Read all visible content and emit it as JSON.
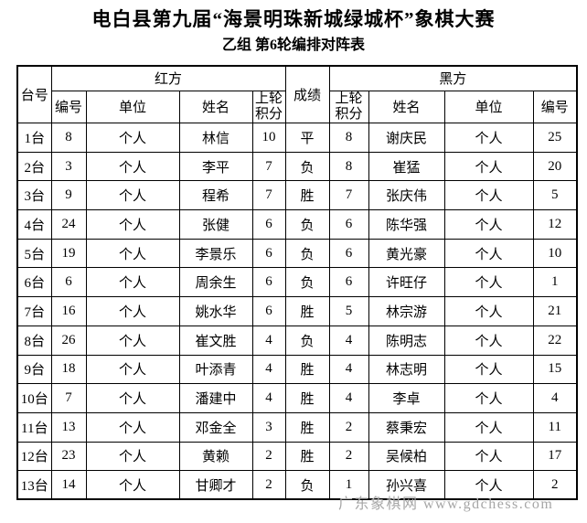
{
  "page": {
    "title": "电白县第九届“海景明珠新城绿城杯”象棋大赛",
    "subtitle": "乙组 第6轮编排对阵表",
    "watermark": "广东象棋网 www.gdchess.com"
  },
  "colors": {
    "text": "#000000",
    "border": "#000000",
    "background": "#ffffff",
    "watermark": "#a6a6a6"
  },
  "table": {
    "headers": {
      "table_no": "台号",
      "red_side": "红方",
      "result": "成绩",
      "black_side": "黑方",
      "player_no": "编号",
      "unit": "单位",
      "name": "姓名",
      "prev_round": "上轮",
      "points": "积分"
    },
    "rows": [
      [
        "1台",
        "8",
        "个人",
        "林信",
        "10",
        "平",
        "8",
        "谢庆民",
        "个人",
        "25"
      ],
      [
        "2台",
        "3",
        "个人",
        "李平",
        "7",
        "负",
        "8",
        "崔猛",
        "个人",
        "20"
      ],
      [
        "3台",
        "9",
        "个人",
        "程希",
        "7",
        "胜",
        "7",
        "张庆伟",
        "个人",
        "5"
      ],
      [
        "4台",
        "24",
        "个人",
        "张健",
        "6",
        "负",
        "6",
        "陈华强",
        "个人",
        "12"
      ],
      [
        "5台",
        "19",
        "个人",
        "李景乐",
        "6",
        "负",
        "6",
        "黄光豪",
        "个人",
        "10"
      ],
      [
        "6台",
        "6",
        "个人",
        "周余生",
        "6",
        "负",
        "6",
        "许旺仔",
        "个人",
        "1"
      ],
      [
        "7台",
        "16",
        "个人",
        "姚水华",
        "6",
        "胜",
        "5",
        "林宗游",
        "个人",
        "21"
      ],
      [
        "8台",
        "26",
        "个人",
        "崔文胜",
        "4",
        "负",
        "4",
        "陈明志",
        "个人",
        "22"
      ],
      [
        "9台",
        "18",
        "个人",
        "叶添青",
        "4",
        "胜",
        "4",
        "林志明",
        "个人",
        "15"
      ],
      [
        "10台",
        "7",
        "个人",
        "潘建中",
        "4",
        "胜",
        "4",
        "李卓",
        "个人",
        "4"
      ],
      [
        "11台",
        "13",
        "个人",
        "邓金全",
        "3",
        "胜",
        "2",
        "蔡秉宏",
        "个人",
        "11"
      ],
      [
        "12台",
        "23",
        "个人",
        "黄赖",
        "2",
        "胜",
        "2",
        "吴候柏",
        "个人",
        "17"
      ],
      [
        "13台",
        "14",
        "个人",
        "甘卿才",
        "2",
        "负",
        "1",
        "孙兴喜",
        "个人",
        "2"
      ]
    ]
  }
}
